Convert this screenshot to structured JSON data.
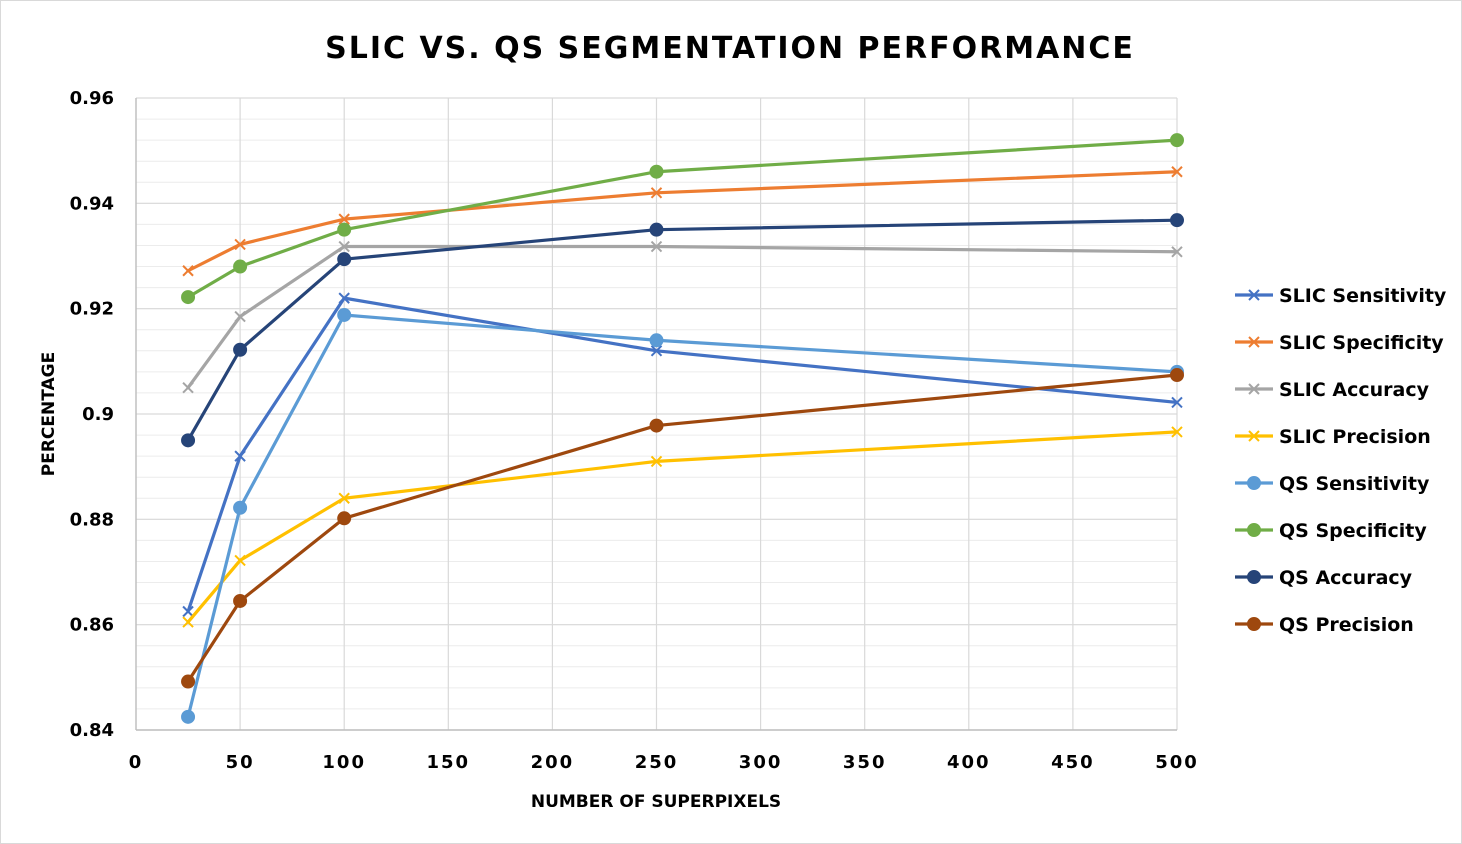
{
  "chart_data": {
    "type": "line",
    "title": "SLIC VS. QS SEGMENTATION PERFORMANCE",
    "xlabel": "NUMBER OF SUPERPIXELS",
    "ylabel": "PERCENTAGE",
    "xlim": [
      0,
      500
    ],
    "ylim": [
      0.84,
      0.96
    ],
    "x_ticks": [
      0,
      50,
      100,
      150,
      200,
      250,
      300,
      350,
      400,
      450,
      500
    ],
    "y_ticks": [
      0.84,
      0.86,
      0.88,
      0.9,
      0.92,
      0.94,
      0.96
    ],
    "y_tick_labels": [
      "0.84",
      "0.86",
      "0.88",
      "0.9",
      "0.92",
      "0.94",
      "0.96"
    ],
    "grid": true,
    "legend_position": "right",
    "x": [
      25,
      50,
      100,
      250,
      500
    ],
    "series": [
      {
        "name": "SLIC Sensitivity",
        "marker": "x",
        "color": "#4472C4",
        "values": [
          0.8625,
          0.892,
          0.922,
          0.912,
          0.9022
        ]
      },
      {
        "name": "SLIC Specificity",
        "marker": "x",
        "color": "#ED7D31",
        "values": [
          0.9272,
          0.9322,
          0.937,
          0.942,
          0.946
        ]
      },
      {
        "name": "SLIC Accuracy",
        "marker": "x",
        "color": "#A5A5A5",
        "values": [
          0.905,
          0.9185,
          0.9318,
          0.9318,
          0.9308
        ]
      },
      {
        "name": "SLIC Precision",
        "marker": "x",
        "color": "#FFC000",
        "values": [
          0.8605,
          0.8722,
          0.884,
          0.891,
          0.8966
        ]
      },
      {
        "name": "QS Sensitivity",
        "marker": "circle",
        "color": "#5B9BD5",
        "values": [
          0.8425,
          0.8822,
          0.9188,
          0.914,
          0.908
        ]
      },
      {
        "name": "QS Specificity",
        "marker": "circle",
        "color": "#70AD47",
        "values": [
          0.9222,
          0.928,
          0.935,
          0.946,
          0.952
        ]
      },
      {
        "name": "QS Accuracy",
        "marker": "circle",
        "color": "#264478",
        "values": [
          0.895,
          0.9122,
          0.9294,
          0.935,
          0.9368
        ]
      },
      {
        "name": "QS Precision",
        "marker": "circle",
        "color": "#9E480E",
        "values": [
          0.8492,
          0.8645,
          0.8802,
          0.8978,
          0.9074
        ]
      }
    ]
  }
}
